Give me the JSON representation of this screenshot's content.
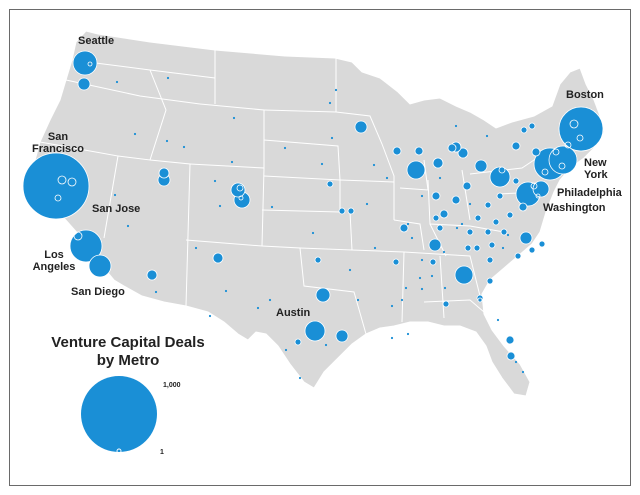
{
  "title_line1": "Venture Capital Deals",
  "title_line2": "by Metro",
  "legend": {
    "max_label": "1,000",
    "min_label": "1",
    "max_value": 1000,
    "min_value": 1
  },
  "colors": {
    "bubble": "#1a8fd6",
    "land": "#d9d9d9",
    "borders": "#ffffff",
    "frame": "#6a6a6a"
  },
  "cities": [
    {
      "id": "seattle",
      "label": "Seattle"
    },
    {
      "id": "san-francisco",
      "label": "San\nFrancisco"
    },
    {
      "id": "san-jose",
      "label": "San Jose"
    },
    {
      "id": "los-angeles",
      "label": "Los\nAngeles"
    },
    {
      "id": "san-diego",
      "label": "San Diego"
    },
    {
      "id": "austin",
      "label": "Austin"
    },
    {
      "id": "boston",
      "label": "Boston"
    },
    {
      "id": "new-york",
      "label": "New\nYork"
    },
    {
      "id": "philadelphia",
      "label": "Philadelphia"
    },
    {
      "id": "washington",
      "label": "Washington"
    }
  ]
}
